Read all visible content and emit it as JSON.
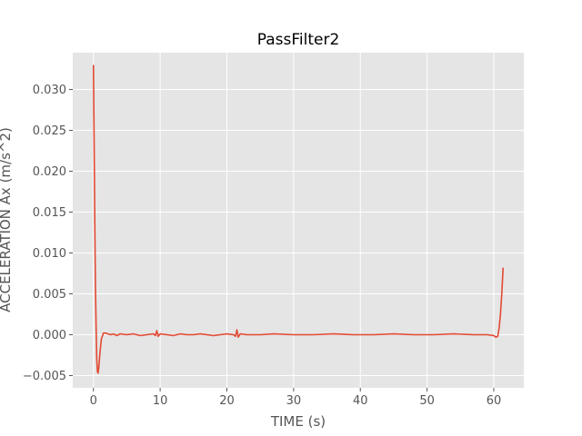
{
  "chart_data": {
    "type": "line",
    "title": "PassFilter2",
    "xlabel": "TIME (s)",
    "ylabel": "ACCELERATION Ax (m/s^2)",
    "xlim": [
      -3.1,
      64.5
    ],
    "ylim": [
      -0.0065,
      0.0345
    ],
    "xticks": [
      0,
      10,
      20,
      30,
      40,
      50,
      60
    ],
    "xtick_labels": [
      "0",
      "10",
      "20",
      "30",
      "40",
      "50",
      "60"
    ],
    "yticks": [
      -0.005,
      0.0,
      0.005,
      0.01,
      0.015,
      0.02,
      0.025,
      0.03
    ],
    "ytick_labels": [
      "−0.005",
      "0.000",
      "0.005",
      "0.010",
      "0.015",
      "0.020",
      "0.025",
      "0.030"
    ],
    "grid": true,
    "colors": {
      "background": "#e5e5e5",
      "grid": "#ffffff",
      "line": "#e24a33"
    },
    "series": [
      {
        "x": [
          0.0,
          0.1,
          0.2,
          0.3,
          0.4,
          0.5,
          0.6,
          0.7,
          0.8,
          1.0,
          1.2,
          1.5,
          1.8,
          2.2,
          2.6,
          3.0,
          3.5,
          4.0,
          5.0,
          6.0,
          7.0,
          8.0,
          9.0,
          9.3,
          9.5,
          9.7,
          10.0,
          11.0,
          12.0,
          13.0,
          14.0,
          15.0,
          16.0,
          17.0,
          18.0,
          19.0,
          20.0,
          21.0,
          21.3,
          21.5,
          21.7,
          22.0,
          23.0,
          25.0,
          27.0,
          30.0,
          33.0,
          36.0,
          39.0,
          42.0,
          45.0,
          48.0,
          51.0,
          54.0,
          57.0,
          59.0,
          60.0,
          60.3,
          60.6,
          60.8,
          61.0,
          61.2,
          61.4
        ],
        "y": [
          0.033,
          0.024,
          0.014,
          0.006,
          0.001,
          -0.003,
          -0.0045,
          -0.0047,
          -0.004,
          -0.002,
          -0.0005,
          0.0002,
          0.0002,
          0.0001,
          0.0,
          0.0001,
          -0.0001,
          0.0001,
          0.0,
          0.0001,
          -0.0001,
          0.0,
          0.0001,
          -0.0001,
          0.0005,
          -0.0002,
          0.0001,
          0.0,
          -0.0001,
          0.0001,
          0.0,
          0.0,
          0.0001,
          0.0,
          -0.0001,
          0.0,
          0.0001,
          0.0,
          -0.0002,
          0.0006,
          -0.0003,
          0.0001,
          0.0,
          0.0,
          0.0001,
          0.0,
          0.0,
          0.0001,
          0.0,
          0.0,
          0.0001,
          0.0,
          0.0,
          0.0001,
          0.0,
          0.0,
          -0.0001,
          -0.0003,
          -0.0002,
          0.0008,
          0.0025,
          0.005,
          0.0082
        ]
      }
    ]
  }
}
